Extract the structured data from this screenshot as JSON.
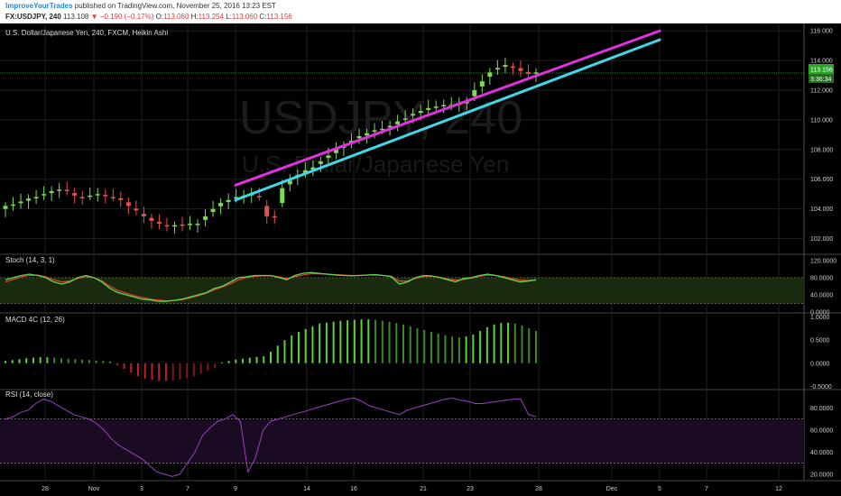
{
  "header": {
    "author": "ImproveYourTrades",
    "published_text": "published on TradingView.com, November 25, 2016 13:23 EST",
    "symbol": "FX:USDJPY, 240",
    "last": "113.108",
    "change": "−0.190 (−0.17%)",
    "o_label": "O:",
    "o_value": "113.060",
    "h_label": "H:",
    "h_value": "113.254",
    "l_label": "L:",
    "l_value": "113.060",
    "c_label": "C:",
    "c_value": "113.156"
  },
  "main": {
    "title": "U.S. Dollar/Japanese Yen, 240, FXCM, Heikin Ashi",
    "watermark_symbol": "USDJPY, 240",
    "watermark_name": "U.S. Dollar/Japanese Yen",
    "price_badge": "113.156",
    "time_badge": "3:36:34"
  },
  "panes": {
    "stoch_label": "Stoch (14, 3, 1)",
    "macd_label": "MACD 4C (12, 26)",
    "rsi_label": "RSI (14, close)"
  },
  "colors": {
    "up": "#7ed957",
    "down": "#e35252",
    "trend_upper": "#e030e0",
    "trend_lower": "#40d8e8",
    "stoch_k": "#57d957",
    "stoch_d": "#e0402a",
    "rsi": "#9b40c0",
    "price_badge": "#2aa52a"
  },
  "chart_data": [
    {
      "type": "candlestick",
      "title": "U.S. Dollar/Japanese Yen, 240, FXCM, Heikin Ashi",
      "y_ticks": [
        "116.000",
        "114.000",
        "112.000",
        "110.000",
        "108.000",
        "106.000",
        "104.000",
        "102.000"
      ],
      "ylim": [
        101,
        116.5
      ],
      "x_ticks": [
        "28",
        "Nov",
        "3",
        "7",
        "9",
        "14",
        "16",
        "21",
        "23",
        "28",
        "Dec",
        "5",
        "7",
        "12"
      ],
      "last_price": 113.156,
      "approx_closes": [
        104.2,
        104.3,
        104.5,
        104.7,
        104.8,
        105.0,
        105.2,
        105.3,
        105.2,
        104.9,
        104.8,
        104.9,
        105.0,
        104.9,
        104.8,
        104.6,
        104.2,
        103.9,
        103.5,
        103.2,
        103.0,
        102.9,
        102.9,
        102.9,
        103.0,
        103.0,
        103.5,
        104.0,
        104.4,
        104.6,
        104.8,
        104.9,
        105.0,
        104.8,
        103.5,
        103.5,
        105.4,
        105.9,
        106.3,
        106.6,
        106.8,
        107.2,
        107.6,
        108.0,
        108.3,
        108.6,
        108.9,
        109.1,
        109.3,
        109.4,
        109.6,
        109.9,
        110.1,
        110.4,
        110.6,
        110.8,
        110.9,
        111.0,
        111.0,
        111.1,
        111.2,
        112.0,
        112.6,
        113.2,
        113.5,
        113.7,
        113.6,
        113.3,
        113.1,
        113.2
      ],
      "trendlines": [
        {
          "name": "upper",
          "color": "#e030e0",
          "start": {
            "x": "Nov 9",
            "y": 105.6
          },
          "end": {
            "x": "Dec 5",
            "y": 116.0
          }
        },
        {
          "name": "lower",
          "color": "#40d8e8",
          "start": {
            "x": "Nov 9",
            "y": 104.6
          },
          "end": {
            "x": "Dec 5",
            "y": 115.4
          }
        }
      ]
    },
    {
      "type": "line",
      "title": "Stoch (14, 3, 1)",
      "y_ticks": [
        "120.0000",
        "80.0000",
        "40.0000",
        "0.0000"
      ],
      "ylim": [
        0,
        130
      ],
      "bands": [
        20,
        80
      ],
      "k": [
        75,
        80,
        85,
        88,
        85,
        80,
        70,
        65,
        70,
        80,
        85,
        80,
        70,
        55,
        45,
        40,
        35,
        30,
        28,
        25,
        25,
        27,
        30,
        35,
        40,
        45,
        55,
        60,
        70,
        80,
        82,
        85,
        85,
        85,
        80,
        75,
        85,
        90,
        92,
        90,
        88,
        86,
        85,
        84,
        85,
        86,
        87,
        85,
        82,
        65,
        70,
        80,
        85,
        84,
        80,
        75,
        70,
        78,
        80,
        85,
        88,
        85,
        80,
        75,
        70,
        72,
        75
      ],
      "d": [
        70,
        76,
        82,
        85,
        86,
        82,
        75,
        70,
        72,
        78,
        82,
        80,
        72,
        60,
        50,
        44,
        38,
        34,
        30,
        28,
        26,
        27,
        29,
        33,
        38,
        44,
        52,
        58,
        66,
        75,
        80,
        83,
        84,
        84,
        82,
        78,
        82,
        86,
        89,
        89,
        88,
        87,
        86,
        85,
        85,
        86,
        86,
        85,
        83,
        72,
        72,
        78,
        82,
        83,
        81,
        77,
        74,
        76,
        79,
        83,
        86,
        85,
        82,
        78,
        74,
        73,
        74
      ]
    },
    {
      "type": "bar",
      "title": "MACD 4C (12, 26)",
      "y_ticks": [
        "1.0000",
        "0.5000",
        "0.0000",
        "-0.5000"
      ],
      "ylim": [
        -0.55,
        1.05
      ],
      "values": [
        0.05,
        0.07,
        0.09,
        0.11,
        0.12,
        0.13,
        0.13,
        0.12,
        0.11,
        0.1,
        0.09,
        0.08,
        0.07,
        0.06,
        0.05,
        0.04,
        -0.05,
        -0.12,
        -0.2,
        -0.28,
        -0.33,
        -0.36,
        -0.38,
        -0.38,
        -0.37,
        -0.35,
        -0.32,
        -0.28,
        -0.22,
        -0.16,
        -0.1,
        0.02,
        0.05,
        0.08,
        0.1,
        0.12,
        0.14,
        0.15,
        0.25,
        0.38,
        0.5,
        0.6,
        0.68,
        0.74,
        0.8,
        0.86,
        0.88,
        0.9,
        0.92,
        0.93,
        0.94,
        0.95,
        0.95,
        0.94,
        0.92,
        0.9,
        0.87,
        0.84,
        0.8,
        0.76,
        0.72,
        0.68,
        0.64,
        0.61,
        0.58,
        0.56,
        0.58,
        0.62,
        0.7,
        0.78,
        0.84,
        0.87,
        0.88,
        0.86,
        0.82,
        0.76,
        0.7
      ]
    },
    {
      "type": "line",
      "title": "RSI (14, close)",
      "y_ticks": [
        "80.0000",
        "60.0000",
        "40.0000",
        "20.0000"
      ],
      "ylim": [
        15,
        95
      ],
      "bands": [
        30,
        70
      ],
      "values": [
        70,
        72,
        76,
        78,
        84,
        88,
        86,
        82,
        78,
        74,
        72,
        70,
        66,
        60,
        52,
        46,
        42,
        38,
        34,
        28,
        22,
        20,
        18,
        20,
        30,
        40,
        55,
        62,
        68,
        70,
        74,
        68,
        22,
        35,
        60,
        68,
        70,
        72,
        74,
        76,
        78,
        80,
        82,
        84,
        86,
        88,
        89,
        86,
        82,
        80,
        78,
        76,
        74,
        78,
        80,
        82,
        84,
        86,
        88,
        89,
        87,
        86,
        84,
        84,
        85,
        86,
        87,
        88,
        88,
        74,
        72
      ]
    }
  ]
}
